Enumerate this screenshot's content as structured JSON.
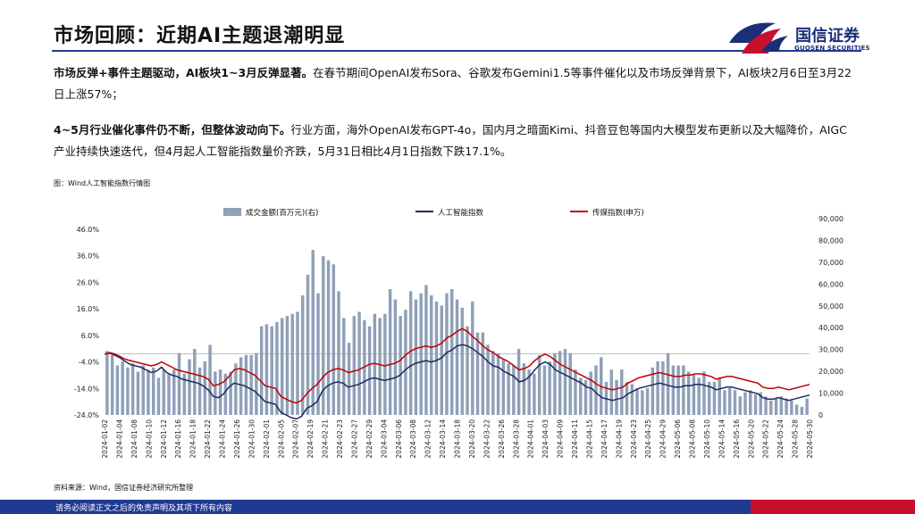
{
  "header": {
    "title": "市场回顾：近期AI主题退潮明显",
    "brand_cn": "国信证券",
    "brand_en": "GUOSEN SECURITIES"
  },
  "text": {
    "p1_bold": "市场反弹+事件主题驱动，AI板块1~3月反弹显著。",
    "p1_rest": "在春节期间OpenAI发布Sora、谷歌发布Gemini1.5等事件催化以及市场反弹背景下，AI板块2月6日至3月22日上涨57%；",
    "p2_bold": "4~5月行业催化事件仍不断，但整体波动向下。",
    "p2_rest": "行业方面，海外OpenAI发布GPT-4o，国内月之暗面Kimi、抖音豆包等国内大模型发布更新以及大幅降价，AIGC产业持续快速迭代，但4月起人工智能指数量价齐跌，5月31日相比4月1日指数下跌17.1%。",
    "caption": "图：Wind人工智能指数行情图",
    "source": "资料来源：Wind，国信证券经济研究所整理",
    "footer": "请务必阅读正文之后的免责声明及其项下所有内容"
  },
  "colors": {
    "brand_blue": "#1f3a93",
    "brand_red": "#c8102e",
    "bar": "#8fa0b8",
    "line_ai": "#1b2a5c",
    "line_media": "#c00000"
  },
  "chart_data": {
    "type": "bar+line",
    "legend": [
      "成交金额(百万元)(右)",
      "人工智能指数",
      "传媒指数(申万)"
    ],
    "legend_position": "top",
    "left_axis": {
      "min": -24,
      "max": 46,
      "ticks": [
        "46.0%",
        "36.0%",
        "26.0%",
        "16.0%",
        "6.0%",
        "-4.0%",
        "-14.0%",
        "-24.0%"
      ]
    },
    "right_axis": {
      "min": 0,
      "max": 90000,
      "ticks": [
        "90,000",
        "80,000",
        "70,000",
        "60,000",
        "50,000",
        "40,000",
        "30,000",
        "20,000",
        "10,000",
        "0"
      ]
    },
    "x_tick_labels": [
      "2024-01-02",
      "2024-01-04",
      "2024-01-08",
      "2024-01-10",
      "2024-01-12",
      "2024-01-16",
      "2024-01-18",
      "2024-01-22",
      "2024-01-24",
      "2024-01-26",
      "2024-01-30",
      "2024-02-01",
      "2024-02-05",
      "2024-02-07",
      "2024-02-19",
      "2024-02-21",
      "2024-02-23",
      "2024-02-27",
      "2024-02-29",
      "2024-03-04",
      "2024-03-06",
      "2024-03-08",
      "2024-03-12",
      "2024-03-14",
      "2024-03-18",
      "2024-03-20",
      "2024-03-22",
      "2024-03-26",
      "2024-03-28",
      "2024-04-01",
      "2024-04-03",
      "2024-04-09",
      "2024-04-11",
      "2024-04-15",
      "2024-04-17",
      "2024-04-19",
      "2024-04-23",
      "2024-04-25",
      "2024-04-29",
      "2024-05-06",
      "2024-05-08",
      "2024-05-10",
      "2024-05-14",
      "2024-05-16",
      "2024-05-20",
      "2024-05-22",
      "2024-05-24",
      "2024-05-28",
      "2024-05-30"
    ],
    "volume": [
      31000,
      29000,
      24000,
      26000,
      23000,
      25000,
      21000,
      24000,
      22000,
      23000,
      18000,
      22000,
      20000,
      22000,
      30000,
      20000,
      27000,
      32000,
      23000,
      26000,
      34000,
      21000,
      22000,
      20000,
      21000,
      25000,
      28000,
      29000,
      29000,
      30000,
      43000,
      44000,
      43000,
      45000,
      47000,
      48000,
      49000,
      50000,
      58000,
      68000,
      80000,
      59000,
      77000,
      75000,
      73000,
      60000,
      47000,
      35000,
      48000,
      50000,
      46000,
      43000,
      49000,
      47000,
      49000,
      61000,
      56000,
      48000,
      51000,
      60000,
      56000,
      59000,
      63000,
      58000,
      55000,
      53000,
      59000,
      61000,
      56000,
      52000,
      43000,
      55000,
      40000,
      40000,
      34000,
      31000,
      30000,
      27000,
      25000,
      24000,
      32000,
      25000,
      22000,
      20000,
      29000,
      24000,
      26000,
      30000,
      31000,
      32000,
      30000,
      22000,
      18000,
      17000,
      21000,
      24000,
      28000,
      16000,
      22000,
      17000,
      22000,
      16000,
      15000,
      13000,
      12000,
      13000,
      23000,
      26000,
      26000,
      30000,
      24000,
      24000,
      24000,
      21000,
      20000,
      18000,
      21000,
      16000,
      16000,
      18000,
      12000,
      13000,
      12000,
      9000,
      11000,
      12000,
      10000,
      11000,
      9000,
      7000,
      8000,
      9000,
      8000,
      7000,
      5000,
      4000,
      8000
    ],
    "ai_index": [
      0,
      0.3,
      -0.5,
      -1.5,
      -2.8,
      -4.0,
      -4.5,
      -5.0,
      -6.0,
      -7.0,
      -6.5,
      -5.0,
      -7.0,
      -8.0,
      -8.5,
      -9.5,
      -10.0,
      -10.5,
      -11.0,
      -12.0,
      -13.5,
      -16.0,
      -16.5,
      -15.0,
      -12.5,
      -11.0,
      -11.5,
      -12.0,
      -13.0,
      -14.0,
      -16.0,
      -18.0,
      -18.5,
      -19.0,
      -22.0,
      -23.0,
      -24.0,
      -24.5,
      -23.5,
      -20.5,
      -19.5,
      -18.0,
      -14.0,
      -12.0,
      -11.0,
      -10.5,
      -11.0,
      -12.5,
      -12.0,
      -11.5,
      -10.5,
      -9.5,
      -9.0,
      -9.5,
      -10.0,
      -9.5,
      -9.0,
      -8.0,
      -6.0,
      -4.5,
      -3.5,
      -3.0,
      -2.5,
      -3.0,
      -2.5,
      -1.5,
      0.5,
      1.5,
      3.0,
      3.5,
      3.0,
      2.0,
      0.5,
      -1.0,
      -3.0,
      -4.5,
      -5.0,
      -6.5,
      -7.5,
      -8.5,
      -10.5,
      -10.0,
      -8.5,
      -6.0,
      -4.0,
      -3.0,
      -4.0,
      -6.0,
      -7.0,
      -8.0,
      -9.0,
      -10.0,
      -11.0,
      -12.5,
      -13.0,
      -15.0,
      -16.5,
      -17.0,
      -17.5,
      -17.0,
      -16.5,
      -15.0,
      -14.0,
      -13.0,
      -12.5,
      -12.0,
      -11.5,
      -11.0,
      -11.5,
      -12.0,
      -12.5,
      -12.5,
      -12.0,
      -12.0,
      -11.5,
      -11.5,
      -12.0,
      -12.5,
      -13.5,
      -13.0,
      -12.5,
      -12.5,
      -13.0,
      -13.5,
      -14.0,
      -14.5,
      -15.0,
      -16.5,
      -17.0,
      -17.0,
      -16.5,
      -17.0,
      -17.5,
      -17.0,
      -16.5,
      -16.0,
      -15.5
    ],
    "media_index": [
      0,
      0.5,
      0,
      -1,
      -2,
      -2.5,
      -3,
      -3.5,
      -4,
      -4.5,
      -4,
      -3,
      -4,
      -5,
      -6,
      -6.5,
      -7,
      -7.5,
      -8,
      -8.5,
      -9.5,
      -12,
      -11.5,
      -10.5,
      -8.5,
      -6,
      -5.5,
      -6,
      -7,
      -8,
      -10,
      -12,
      -12.5,
      -13,
      -16,
      -17,
      -18,
      -18.5,
      -17.5,
      -15,
      -13,
      -11.5,
      -9,
      -7,
      -6,
      -5.5,
      -6,
      -7,
      -6.5,
      -6,
      -5,
      -4,
      -3.5,
      -4,
      -4.5,
      -4,
      -3.5,
      -2.5,
      -0.5,
      1,
      2,
      2.5,
      3,
      2.5,
      3,
      4,
      6,
      7,
      8.5,
      9.5,
      8.5,
      6.5,
      5,
      3,
      1.5,
      0.5,
      -1,
      -2,
      -3,
      -4.5,
      -6,
      -5.5,
      -4.5,
      -2.5,
      -1,
      0,
      -1,
      -2.5,
      -4,
      -5,
      -6,
      -7,
      -8,
      -9,
      -10,
      -11.5,
      -12.5,
      -13,
      -13.5,
      -13,
      -12.5,
      -11,
      -10,
      -9,
      -8.5,
      -8,
      -7.5,
      -7,
      -7.5,
      -8,
      -8.5,
      -8.5,
      -8,
      -8,
      -7.5,
      -7.5,
      -8,
      -8.5,
      -9.5,
      -9,
      -8.5,
      -8.5,
      -9,
      -9.5,
      -10,
      -10.5,
      -11,
      -12.5,
      -13,
      -13,
      -12.5,
      -13,
      -13.5,
      -13,
      -12.5,
      -12,
      -11.5
    ]
  }
}
